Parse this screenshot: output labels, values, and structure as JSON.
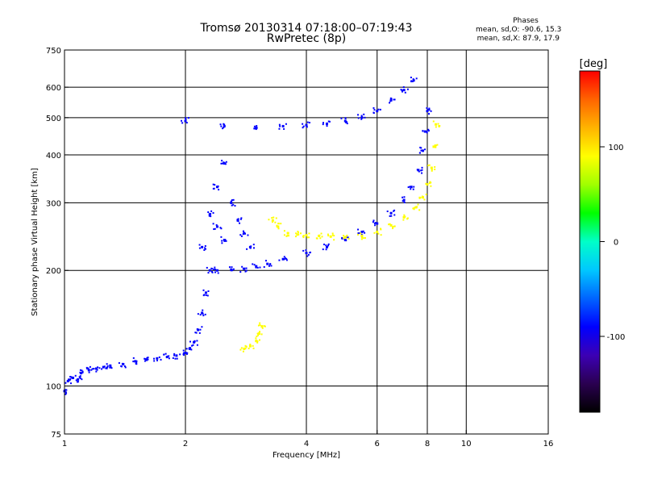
{
  "title_line1": "Tromsø 20130314 07:18:00–07:19:43",
  "title_line2": "RwPretec (8p)",
  "phase_box": {
    "heading": "Phases",
    "line1": "mean, sd,O: -90.6, 15.3",
    "line2": "mean, sd,X:  87.9, 17.9"
  },
  "colorbar": {
    "label": "[deg]",
    "range": [
      -180,
      180
    ],
    "ticks": [
      100,
      0,
      -100
    ],
    "colors": [
      "#000000",
      "#2a0050",
      "#3c00b4",
      "#0000ff",
      "#0064ff",
      "#00c8ff",
      "#00ffc8",
      "#00ff00",
      "#a0ff00",
      "#ffff00",
      "#ffb400",
      "#ff6400",
      "#ff0000"
    ]
  },
  "chart_data": {
    "type": "scatter",
    "title": "Tromsø 20130314 07:18:00–07:19:43",
    "subtitle": "RwPretec (8p)",
    "xlabel": "Frequency [MHz]",
    "ylabel": "Stationary phase Virtual Height [km]",
    "xscale": "log",
    "yscale": "log",
    "xlim": [
      1,
      16
    ],
    "ylim": [
      75,
      750
    ],
    "x_ticks": [
      1,
      2,
      4,
      6,
      8,
      10,
      16
    ],
    "y_ticks": [
      75,
      100,
      200,
      300,
      400,
      500,
      600,
      750
    ],
    "x_grid": [
      2,
      4,
      6,
      8,
      10
    ],
    "y_grid": [
      100,
      200,
      300,
      400,
      500,
      600
    ],
    "grid": true,
    "color_scale": "Phase [deg]",
    "series": [
      {
        "trace": "E-region echoes",
        "phase_deg": -100,
        "points": [
          [
            1.0,
            97
          ],
          [
            1.02,
            103
          ],
          [
            1.05,
            105
          ],
          [
            1.08,
            104
          ],
          [
            1.1,
            108
          ],
          [
            1.15,
            110
          ],
          [
            1.2,
            111
          ],
          [
            1.25,
            112
          ],
          [
            1.3,
            113
          ],
          [
            1.4,
            114
          ],
          [
            1.5,
            116
          ],
          [
            1.6,
            117
          ],
          [
            1.7,
            118
          ],
          [
            1.8,
            119
          ],
          [
            1.9,
            120
          ],
          [
            2.0,
            122
          ],
          [
            2.05,
            125
          ],
          [
            2.1,
            130
          ],
          [
            2.15,
            140
          ],
          [
            2.2,
            155
          ],
          [
            2.25,
            175
          ],
          [
            2.3,
            200
          ]
        ]
      },
      {
        "trace": "F-region O-mode",
        "phase_deg": -100,
        "points": [
          [
            2.4,
            200
          ],
          [
            2.6,
            201
          ],
          [
            2.8,
            202
          ],
          [
            3.0,
            205
          ],
          [
            3.2,
            208
          ],
          [
            3.5,
            214
          ],
          [
            4.0,
            222
          ],
          [
            4.5,
            230
          ],
          [
            5.0,
            240
          ],
          [
            5.5,
            252
          ],
          [
            6.0,
            265
          ],
          [
            6.5,
            282
          ],
          [
            7.0,
            305
          ],
          [
            7.3,
            330
          ],
          [
            7.6,
            365
          ],
          [
            7.8,
            410
          ],
          [
            7.9,
            460
          ],
          [
            8.0,
            520
          ]
        ]
      },
      {
        "trace": "F-region X-mode",
        "phase_deg": 90,
        "points": [
          [
            3.3,
            270
          ],
          [
            3.4,
            260
          ],
          [
            3.6,
            250
          ],
          [
            3.8,
            248
          ],
          [
            4.0,
            247
          ],
          [
            4.3,
            246
          ],
          [
            4.6,
            245
          ],
          [
            5.0,
            244
          ],
          [
            5.5,
            246
          ],
          [
            6.0,
            252
          ],
          [
            6.5,
            262
          ],
          [
            7.0,
            275
          ],
          [
            7.5,
            292
          ],
          [
            7.8,
            310
          ],
          [
            8.0,
            335
          ],
          [
            8.2,
            370
          ],
          [
            8.3,
            420
          ],
          [
            8.4,
            480
          ]
        ]
      },
      {
        "trace": "Second-hop echoes",
        "phase_deg": -100,
        "points": [
          [
            2.0,
            490
          ],
          [
            2.5,
            475
          ],
          [
            3.0,
            470
          ],
          [
            3.5,
            475
          ],
          [
            4.0,
            478
          ],
          [
            4.5,
            482
          ],
          [
            5.0,
            490
          ],
          [
            5.5,
            500
          ],
          [
            6.0,
            520
          ],
          [
            6.5,
            555
          ],
          [
            7.0,
            590
          ],
          [
            7.4,
            625
          ]
        ]
      },
      {
        "trace": "Spread F",
        "phase_deg": -100,
        "points": [
          [
            2.2,
            230
          ],
          [
            2.3,
            280
          ],
          [
            2.4,
            330
          ],
          [
            2.5,
            380
          ],
          [
            2.4,
            260
          ],
          [
            2.6,
            300
          ],
          [
            2.7,
            270
          ],
          [
            2.8,
            250
          ],
          [
            2.9,
            230
          ],
          [
            2.5,
            240
          ]
        ]
      },
      {
        "trace": "Isolated echo",
        "phase_deg": 95,
        "points": [
          [
            2.8,
            125
          ],
          [
            2.9,
            127
          ],
          [
            3.0,
            131
          ],
          [
            3.05,
            137
          ],
          [
            3.1,
            143
          ]
        ]
      }
    ]
  }
}
